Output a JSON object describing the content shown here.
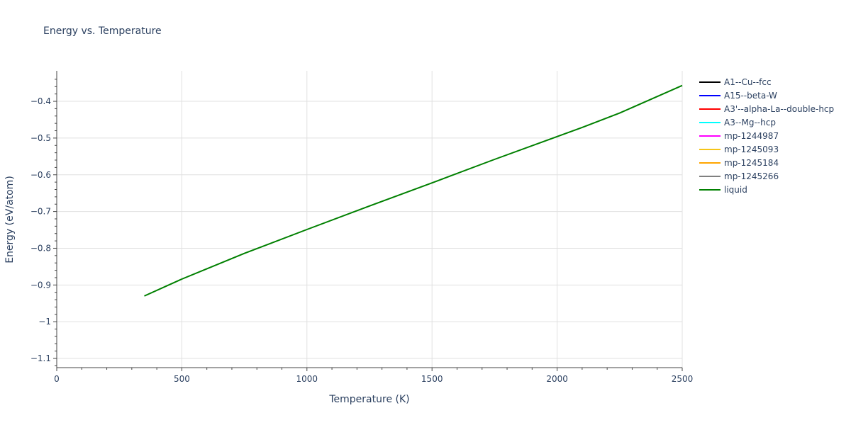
{
  "chart_data": {
    "type": "line",
    "title": "Energy vs. Temperature",
    "xlabel": "Temperature (K)",
    "ylabel": "Energy (eV/atom)",
    "xlim": [
      0,
      2500
    ],
    "ylim": [
      -1.125,
      -0.317
    ],
    "x_ticks": [
      0,
      500,
      1000,
      1500,
      2000,
      2500
    ],
    "y_ticks": [
      -1.1,
      -1,
      -0.9,
      -0.8,
      -0.7,
      -0.6,
      -0.5,
      -0.4
    ],
    "y_tick_labels": [
      "−1.1",
      "−1",
      "−0.9",
      "−0.8",
      "−0.7",
      "−0.6",
      "−0.5",
      "−0.4"
    ],
    "grid": true,
    "legend_position": "right",
    "series": [
      {
        "name": "A1--Cu--fcc",
        "color": "#000000",
        "x": [],
        "y": []
      },
      {
        "name": "A15--beta-W",
        "color": "#0000ff",
        "x": [],
        "y": []
      },
      {
        "name": "A3'--alpha-La--double-hcp",
        "color": "#ff0000",
        "x": [],
        "y": []
      },
      {
        "name": "A3--Mg--hcp",
        "color": "#00ffff",
        "x": [],
        "y": []
      },
      {
        "name": "mp-1244987",
        "color": "#ff00ff",
        "x": [],
        "y": []
      },
      {
        "name": "mp-1245093",
        "color": "#f5c518",
        "x": [],
        "y": []
      },
      {
        "name": "mp-1245184",
        "color": "#ffa500",
        "x": [],
        "y": []
      },
      {
        "name": "mp-1245266",
        "color": "#808080",
        "x": [],
        "y": []
      },
      {
        "name": "liquid",
        "color": "#008000",
        "x": [
          350,
          500,
          750,
          1000,
          1250,
          1500,
          1750,
          2000,
          2100,
          2250,
          2500
        ],
        "y": [
          -0.93,
          -0.884,
          -0.814,
          -0.749,
          -0.685,
          -0.622,
          -0.558,
          -0.496,
          -0.471,
          -0.432,
          -0.357
        ]
      }
    ]
  },
  "legend": {
    "items": [
      {
        "label": "A1--Cu--fcc",
        "color": "#000000"
      },
      {
        "label": "A15--beta-W",
        "color": "#0000ff"
      },
      {
        "label": "A3'--alpha-La--double-hcp",
        "color": "#ff0000"
      },
      {
        "label": "A3--Mg--hcp",
        "color": "#00ffff"
      },
      {
        "label": "mp-1244987",
        "color": "#ff00ff"
      },
      {
        "label": "mp-1245093",
        "color": "#f5c518"
      },
      {
        "label": "mp-1245184",
        "color": "#ffa500"
      },
      {
        "label": "mp-1245266",
        "color": "#808080"
      },
      {
        "label": "liquid",
        "color": "#008000"
      }
    ]
  }
}
